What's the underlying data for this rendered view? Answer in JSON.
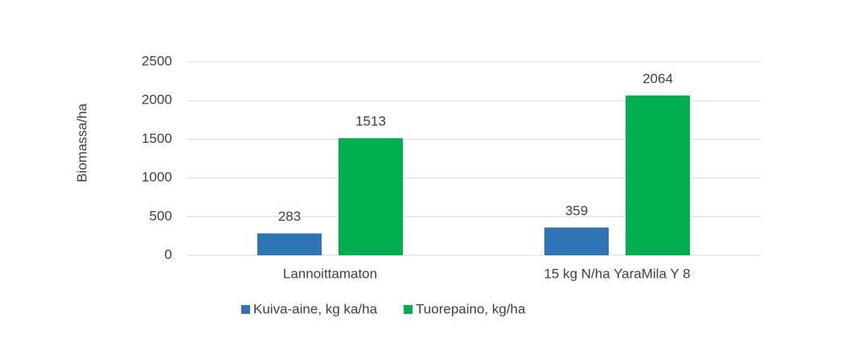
{
  "chart_data": {
    "type": "bar",
    "y_label": "Biomassa/ha",
    "categories": [
      "Lannoittamaton",
      "15 kg N/ha YaraMila Y 8"
    ],
    "series": [
      {
        "name": "Kuiva-aine, kg ka/ha",
        "color": "#2e75b6",
        "values": [
          283,
          359
        ]
      },
      {
        "name": "Tuorepaino, kg/ha",
        "color": "#00b050",
        "values": [
          1513,
          2064
        ]
      }
    ],
    "ylim": [
      0,
      2500
    ],
    "yticks": [
      0,
      500,
      1000,
      1500,
      2000,
      2500
    ],
    "grid": true,
    "legend": "bottom"
  }
}
